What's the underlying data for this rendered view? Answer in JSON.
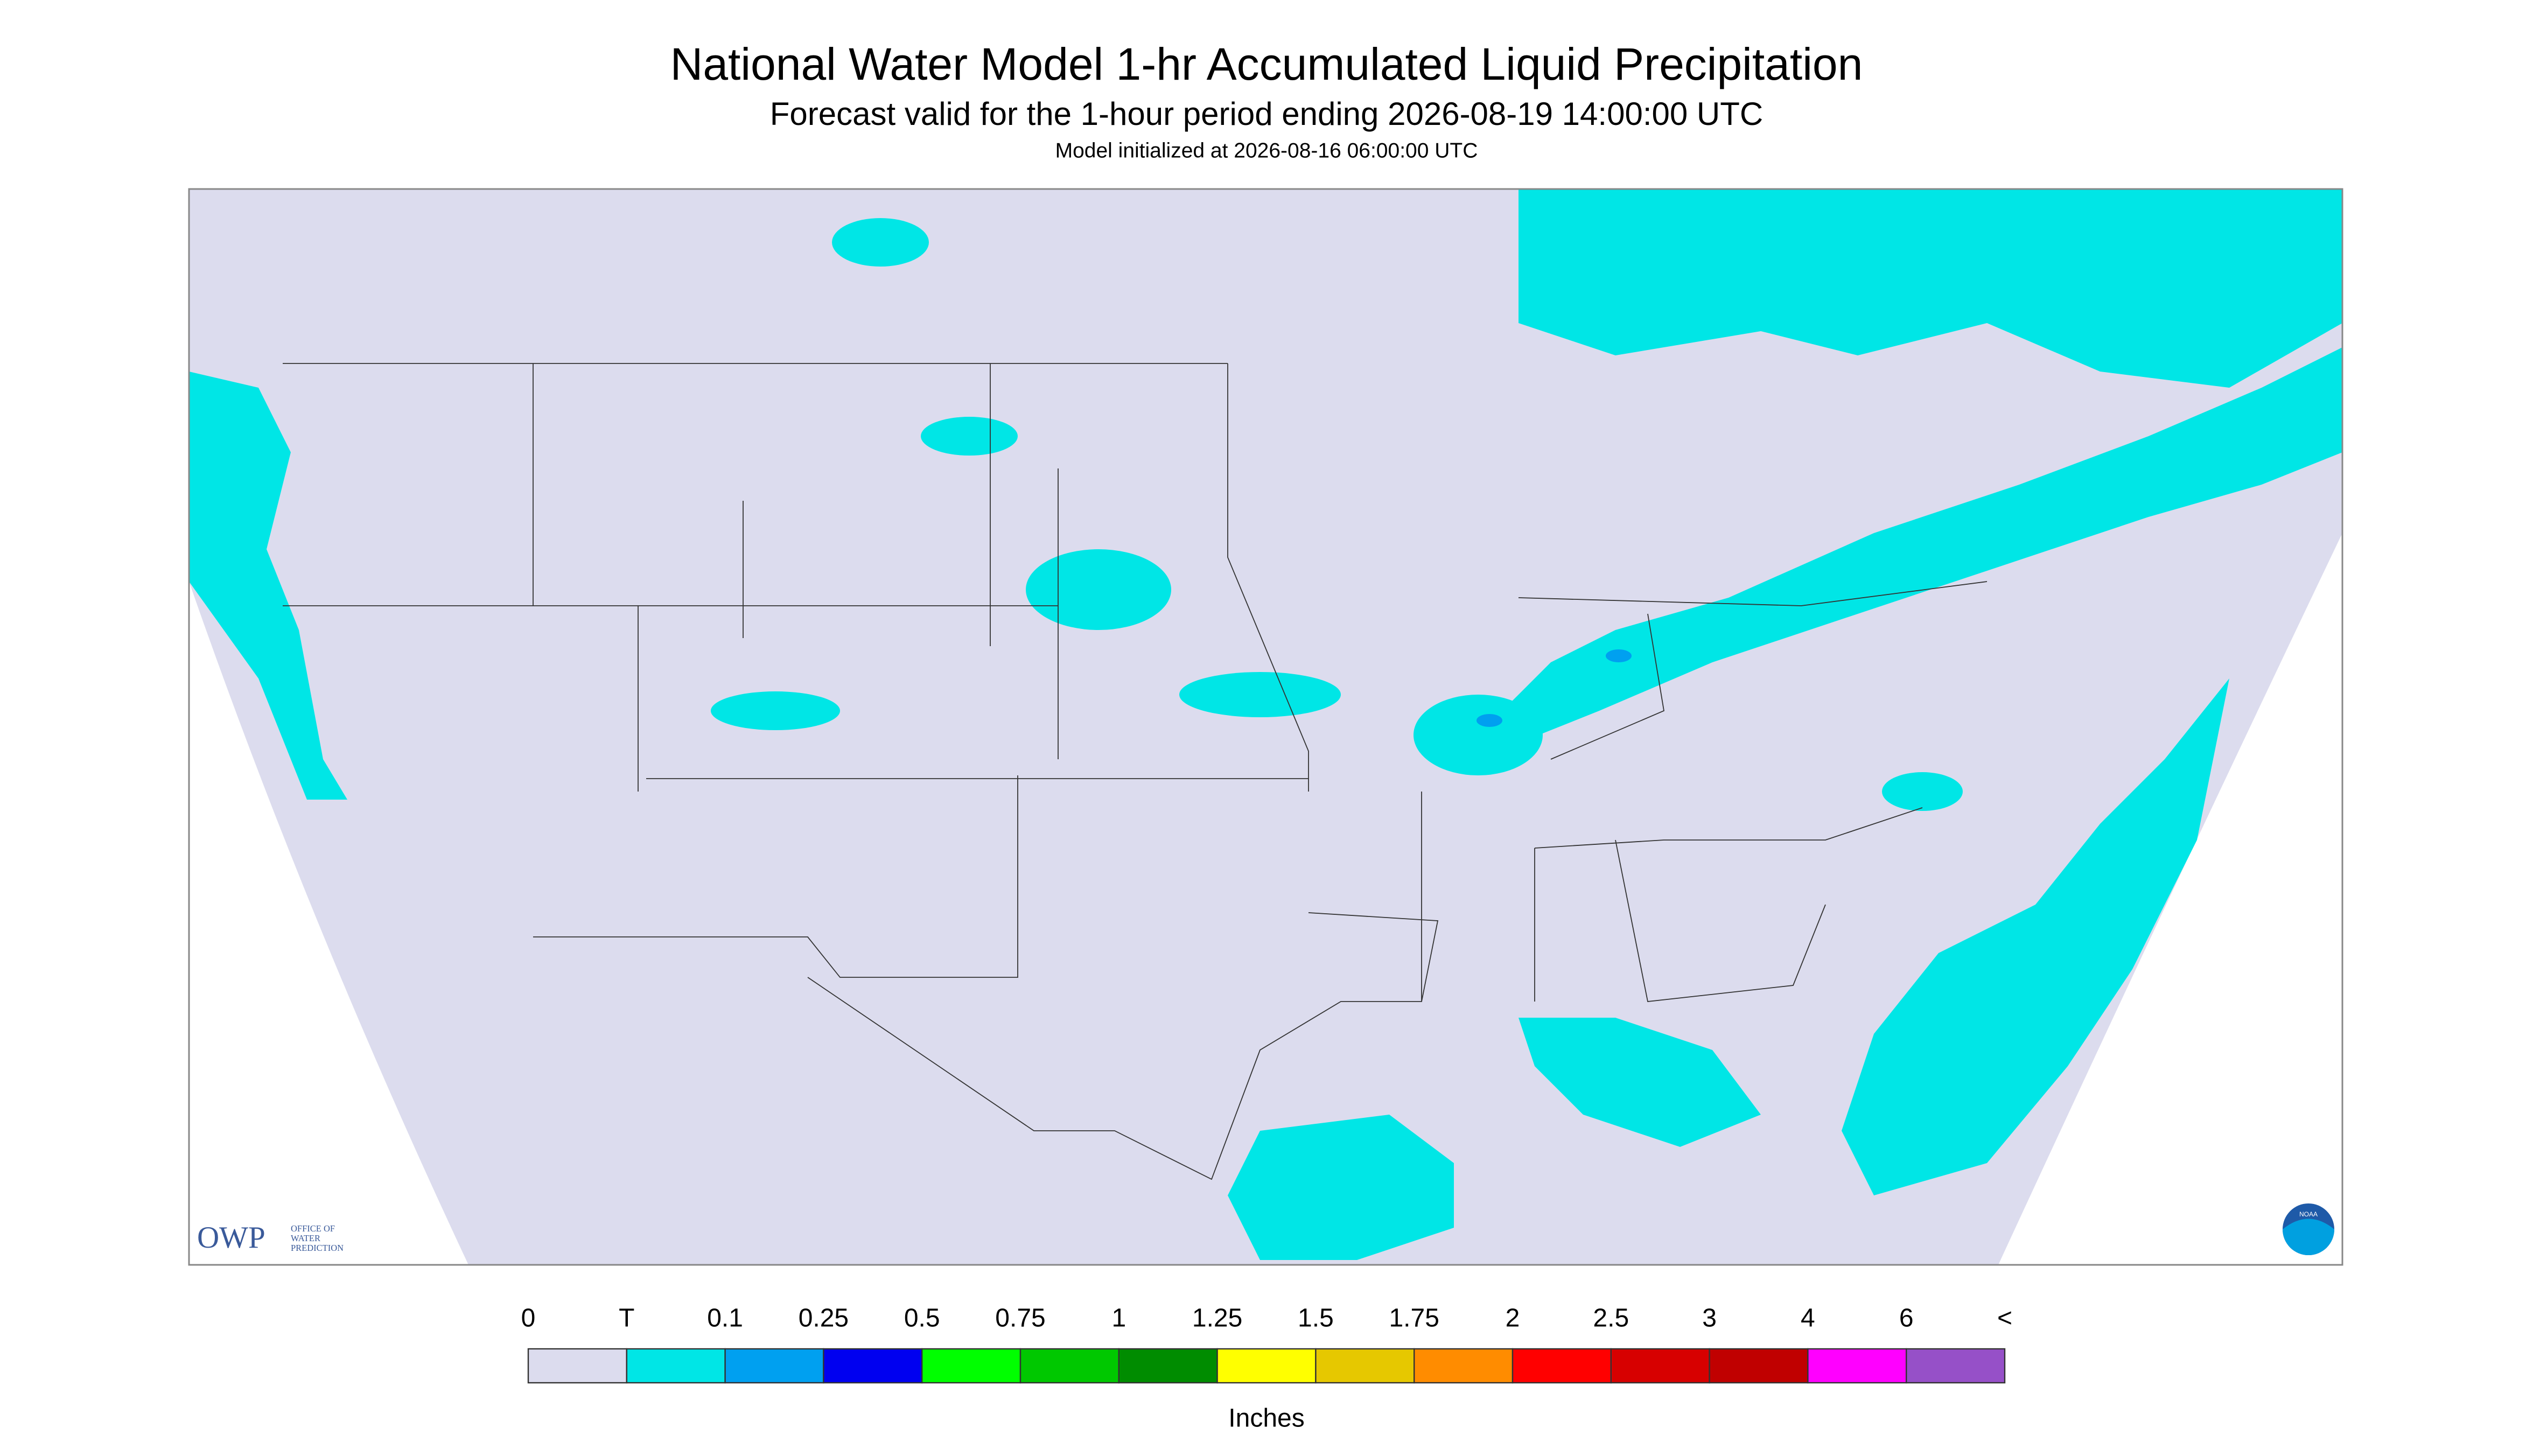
{
  "header": {
    "title": "National Water Model 1-hr Accumulated Liquid Precipitation",
    "subtitle": "Forecast valid for the 1-hour period ending 2026-08-19 14:00:00 UTC",
    "init": "Model initialized at 2026-08-16 06:00:00 UTC"
  },
  "legend": {
    "labels": [
      "0",
      "T",
      "0.1",
      "0.25",
      "0.5",
      "0.75",
      "1",
      "1.25",
      "1.5",
      "1.75",
      "2",
      "2.5",
      "3",
      "4",
      "6",
      "<"
    ],
    "colors": [
      "#dcdcee",
      "#00e6e6",
      "#00a0f0",
      "#0000f0",
      "#00ff00",
      "#00c800",
      "#008c00",
      "#ffff00",
      "#e6c800",
      "#ff8c00",
      "#ff0000",
      "#d70000",
      "#c00000",
      "#ff00ff",
      "#9650c8"
    ],
    "unit": "Inches"
  },
  "logos": {
    "owp": "OWP",
    "owp_name": [
      "OFFICE OF",
      "WATER",
      "PREDICTION"
    ],
    "noaa": "NOAA"
  }
}
